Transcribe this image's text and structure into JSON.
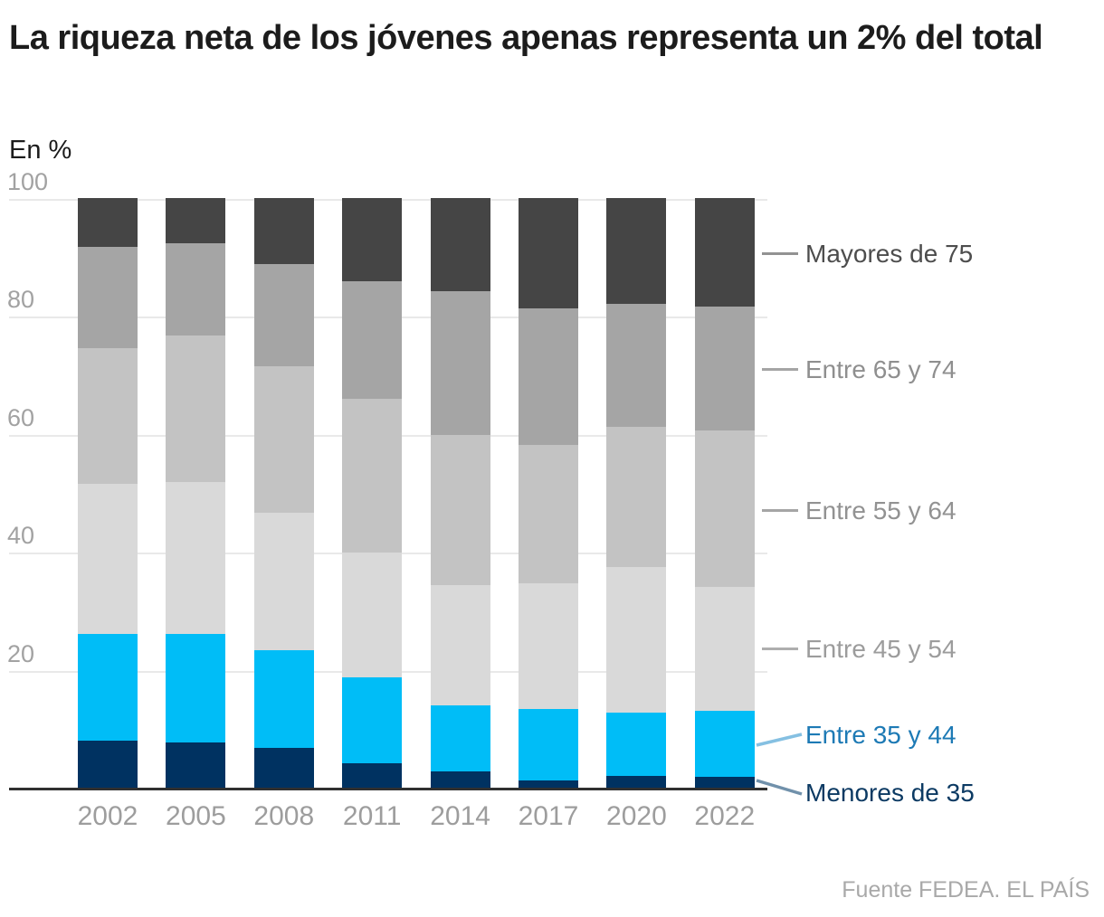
{
  "header": {
    "title": "La riqueza neta de los jóvenes apenas representa un 2% del total",
    "subtitle": "En %"
  },
  "source": "Fuente FEDEA. EL PAÍS",
  "colors": {
    "axis_text": "#a2a2a2",
    "year_text": "#9d9d9d",
    "gridline": "#e9e9e9",
    "baseline": "#303030",
    "title_text": "#1c1c1c",
    "source_text": "#a9a9a9"
  },
  "chart_data": {
    "type": "bar",
    "stacked": true,
    "title": "La riqueza neta de los jóvenes apenas representa un 2% del total",
    "xlabel": "",
    "ylabel": "En %",
    "ylim": [
      0,
      100
    ],
    "y_ticks": [
      100,
      80,
      60,
      40,
      20
    ],
    "grid": true,
    "legend_position": "right",
    "categories": [
      "2002",
      "2005",
      "2008",
      "2011",
      "2014",
      "2017",
      "2020",
      "2022"
    ],
    "series": [
      {
        "name": "Menores de 35",
        "color": "#003261",
        "values": [
          8.0,
          7.7,
          6.8,
          4.2,
          2.8,
          1.3,
          2.0,
          1.8
        ]
      },
      {
        "name": "Entre 35 y 44",
        "color": "#00bdf7",
        "values": [
          18.0,
          18.3,
          16.5,
          14.5,
          11.2,
          12.1,
          10.7,
          11.3
        ]
      },
      {
        "name": "Entre 45 y 54",
        "color": "#d9d9d9",
        "values": [
          25.6,
          25.8,
          23.3,
          21.2,
          20.3,
          21.3,
          24.8,
          20.9
        ]
      },
      {
        "name": "Entre 55 y 64",
        "color": "#c3c3c3",
        "values": [
          23.0,
          24.9,
          24.9,
          26.1,
          25.5,
          23.4,
          23.7,
          26.6
        ]
      },
      {
        "name": "Entre 65 y 74",
        "color": "#a5a5a5",
        "values": [
          17.1,
          15.6,
          17.3,
          19.9,
          24.4,
          23.2,
          20.8,
          21.0
        ]
      },
      {
        "name": "Mayores de 75",
        "color": "#454545",
        "values": [
          8.3,
          7.7,
          11.2,
          14.1,
          15.8,
          18.7,
          18.0,
          18.4
        ]
      }
    ]
  },
  "legend": {
    "items": [
      {
        "label": "Mayores de 75",
        "text_color": "#4d4d4d",
        "leader_color": "#929292"
      },
      {
        "label": "Entre 65 y 74",
        "text_color": "#8f8f8f",
        "leader_color": "#a5a5a5"
      },
      {
        "label": "Entre 55 y 64",
        "text_color": "#929292",
        "leader_color": "#a5a5a5"
      },
      {
        "label": "Entre 45 y 54",
        "text_color": "#9c9c9c",
        "leader_color": "#aeaeae"
      },
      {
        "label": "Entre 35 y 44",
        "text_color": "#1d7ab5",
        "leader_color": "#85c0e2"
      },
      {
        "label": "Menores de 35",
        "text_color": "#0c3a63",
        "leader_color": "#7191ab"
      }
    ]
  }
}
